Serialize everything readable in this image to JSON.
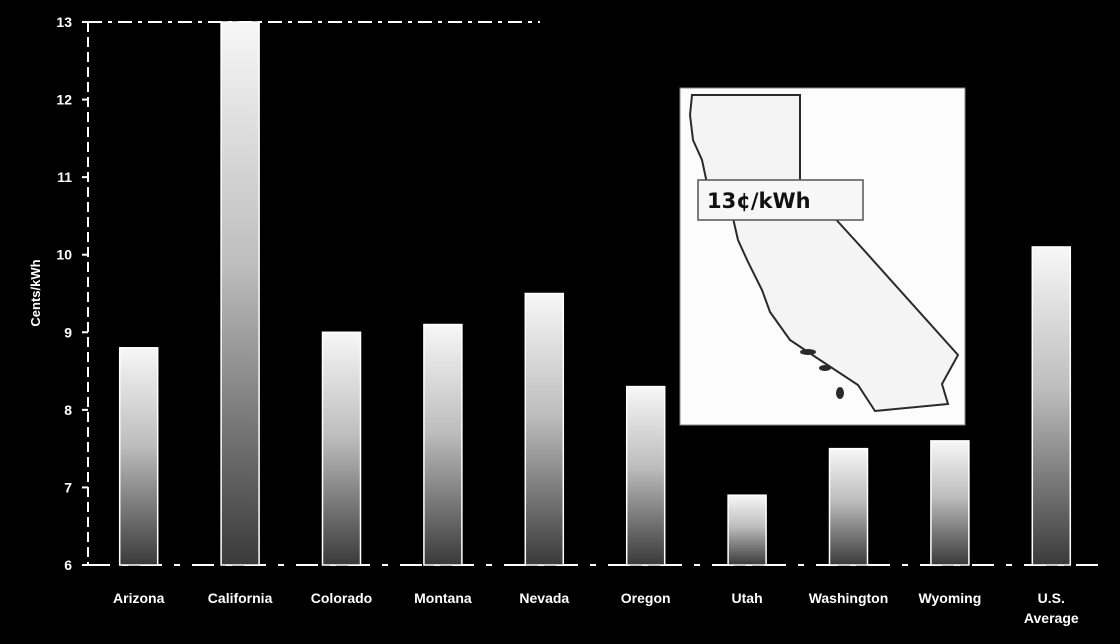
{
  "chart_data": {
    "type": "bar",
    "title": "",
    "xlabel": "",
    "ylabel": "Cents/kWh",
    "ylim": [
      6,
      13
    ],
    "yticks": [
      6,
      7,
      8,
      9,
      10,
      11,
      12,
      13
    ],
    "grid": false,
    "categories": [
      "Arizona",
      "California",
      "Colorado",
      "Montana",
      "Nevada",
      "Oregon",
      "Utah",
      "Washington",
      "Wyoming",
      "U.S. Average"
    ],
    "category_lines": [
      [
        "Arizona"
      ],
      [
        "California"
      ],
      [
        "Colorado"
      ],
      [
        "Montana"
      ],
      [
        "Nevada"
      ],
      [
        "Oregon"
      ],
      [
        "Utah"
      ],
      [
        "Washington"
      ],
      [
        "Wyoming"
      ],
      [
        "U.S.",
        "Average"
      ]
    ],
    "values": [
      8.8,
      13.0,
      9.0,
      9.1,
      9.5,
      8.3,
      6.9,
      7.5,
      7.6,
      10.1
    ],
    "colors": {
      "background": "#000000",
      "bar_light": "#f4f4f4",
      "bar_dark": "#3a3a3a",
      "text": "#ffffff"
    },
    "inset": {
      "label": "13¢/kWh",
      "icon": "california-map-icon"
    }
  }
}
